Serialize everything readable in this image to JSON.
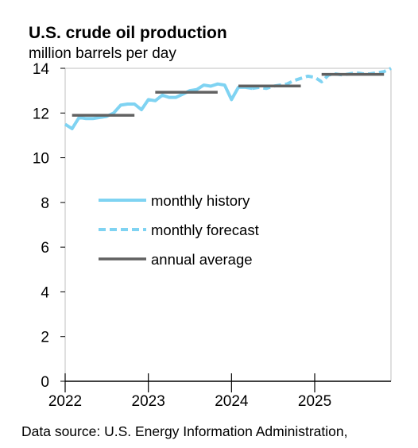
{
  "title": "U.S. crude oil production",
  "subtitle": "million barrels per day",
  "source": "Data source: U.S. Energy Information Administration,",
  "colors": {
    "history": "#7fd3f2",
    "forecast": "#7fd3f2",
    "annual": "#616161",
    "axis": "#bfbfbf"
  },
  "chart_data": {
    "type": "line",
    "title": "U.S. crude oil production",
    "ylabel": "million barrels per day",
    "xlim": [
      2022,
      2025.917
    ],
    "ylim": [
      0,
      14
    ],
    "y_ticks": [
      "0",
      "2",
      "4",
      "6",
      "8",
      "10",
      "12",
      "14"
    ],
    "x_ticks": [
      "2022",
      "2023",
      "2024",
      "2025"
    ],
    "grid": false,
    "legend": {
      "position": "center-left",
      "entries": [
        "monthly history",
        "monthly forecast",
        "annual average"
      ]
    },
    "series": [
      {
        "name": "monthly history",
        "style": "solid",
        "x": [
          2022.0,
          2022.083,
          2022.167,
          2022.25,
          2022.333,
          2022.417,
          2022.5,
          2022.583,
          2022.667,
          2022.75,
          2022.833,
          2022.917,
          2023.0,
          2023.083,
          2023.167,
          2023.25,
          2023.333,
          2023.417,
          2023.5,
          2023.583,
          2023.667,
          2023.75,
          2023.833,
          2023.917,
          2024.0,
          2024.083,
          2024.167,
          2024.25
        ],
        "y": [
          11.5,
          11.3,
          11.8,
          11.75,
          11.75,
          11.8,
          11.85,
          12.0,
          12.35,
          12.4,
          12.4,
          12.15,
          12.6,
          12.55,
          12.8,
          12.7,
          12.7,
          12.85,
          13.0,
          13.05,
          13.25,
          13.2,
          13.3,
          13.25,
          12.6,
          13.15,
          13.15,
          13.1
        ]
      },
      {
        "name": "monthly forecast",
        "style": "dashed",
        "x": [
          2024.25,
          2024.333,
          2024.417,
          2024.5,
          2024.583,
          2024.667,
          2024.75,
          2024.833,
          2024.917,
          2025.0,
          2025.083,
          2025.167,
          2025.25,
          2025.333,
          2025.417,
          2025.5,
          2025.583,
          2025.667,
          2025.75,
          2025.833,
          2025.917
        ],
        "y": [
          13.1,
          13.15,
          13.1,
          13.2,
          13.25,
          13.3,
          13.45,
          13.55,
          13.65,
          13.6,
          13.4,
          13.7,
          13.75,
          13.7,
          13.75,
          13.8,
          13.75,
          13.75,
          13.8,
          13.85,
          14.0
        ]
      }
    ],
    "annual_average": [
      {
        "year": 2022,
        "x_start": 2022.083,
        "x_end": 2022.833,
        "value": 11.9
      },
      {
        "year": 2023,
        "x_start": 2023.083,
        "x_end": 2023.833,
        "value": 12.93
      },
      {
        "year": 2024,
        "x_start": 2024.083,
        "x_end": 2024.833,
        "value": 13.21
      },
      {
        "year": 2025,
        "x_start": 2025.083,
        "x_end": 2025.833,
        "value": 13.73
      }
    ]
  }
}
